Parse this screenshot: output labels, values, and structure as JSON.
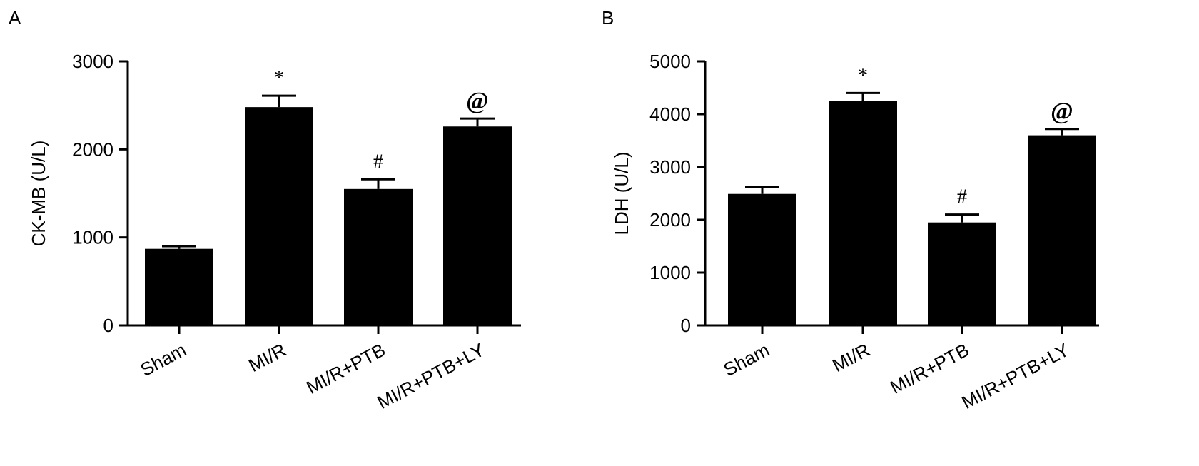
{
  "chart_data": [
    {
      "type": "bar",
      "panel_label": "A",
      "ylabel": "CK-MB (U/L)",
      "xlabel": "",
      "categories": [
        "Sham",
        "MI/R",
        "MI/R+PTB",
        "MI/R+PTB+LY"
      ],
      "values": [
        870,
        2480,
        1550,
        2260
      ],
      "errors": [
        30,
        130,
        110,
        90
      ],
      "annotations": [
        "",
        "*",
        "#",
        "@"
      ],
      "ylim": [
        0,
        3000
      ],
      "yticks": [
        0,
        1000,
        2000,
        3000
      ],
      "grid": false,
      "bar_color": "#000000"
    },
    {
      "type": "bar",
      "panel_label": "B",
      "ylabel": "LDH (U/L)",
      "xlabel": "",
      "categories": [
        "Sham",
        "MI/R",
        "MI/R+PTB",
        "MI/R+PTB+LY"
      ],
      "values": [
        2490,
        4250,
        1950,
        3600
      ],
      "errors": [
        130,
        150,
        150,
        120
      ],
      "annotations": [
        "",
        "*",
        "#",
        "@"
      ],
      "ylim": [
        0,
        5000
      ],
      "yticks": [
        0,
        1000,
        2000,
        3000,
        4000,
        5000
      ],
      "grid": false,
      "bar_color": "#000000"
    }
  ]
}
